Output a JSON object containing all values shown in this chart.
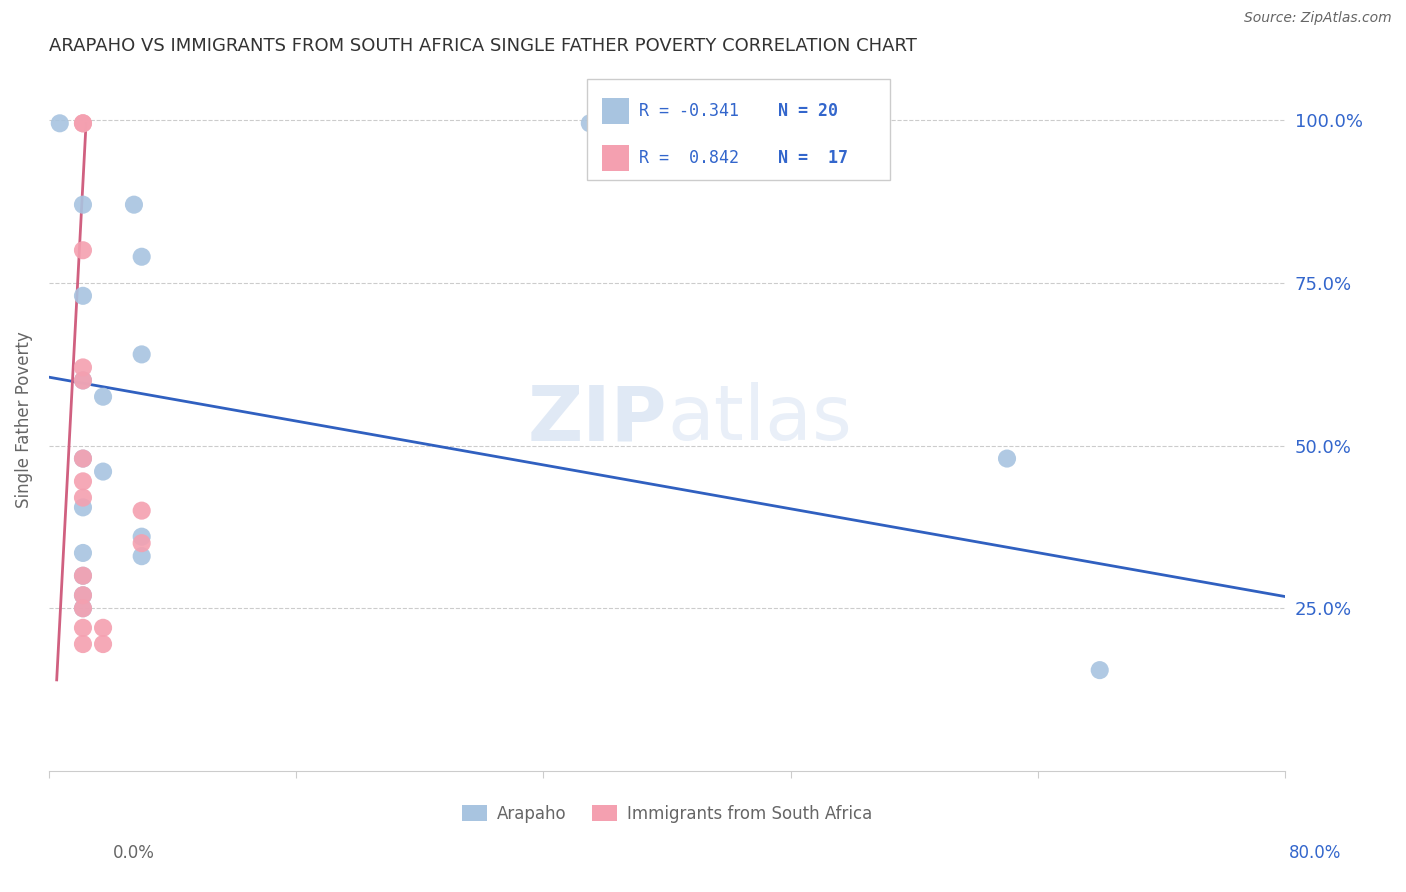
{
  "title": "ARAPAHO VS IMMIGRANTS FROM SOUTH AFRICA SINGLE FATHER POVERTY CORRELATION CHART",
  "source": "Source: ZipAtlas.com",
  "ylabel": "Single Father Poverty",
  "ytick_labels": [
    "100.0%",
    "75.0%",
    "50.0%",
    "25.0%"
  ],
  "ytick_positions": [
    1.0,
    0.75,
    0.5,
    0.25
  ],
  "xlim": [
    0.0,
    0.8
  ],
  "ylim": [
    0.0,
    1.08
  ],
  "legend_r1": "R = -0.341",
  "legend_n1": "N = 20",
  "legend_r2": "R =  0.842",
  "legend_n2": "N =  17",
  "arapaho_color": "#a8c4e0",
  "south_africa_color": "#f4a0b0",
  "line_blue": "#3060c0",
  "line_pink": "#d06080",
  "watermark_zip": "ZIP",
  "watermark_atlas": "atlas",
  "arapaho_x": [
    0.007,
    0.022,
    0.055,
    0.06,
    0.022,
    0.06,
    0.022,
    0.035,
    0.022,
    0.035,
    0.022,
    0.022,
    0.022,
    0.022,
    0.022,
    0.06,
    0.06,
    0.35,
    0.62,
    0.68
  ],
  "arapaho_y": [
    0.995,
    0.87,
    0.87,
    0.79,
    0.73,
    0.64,
    0.6,
    0.575,
    0.48,
    0.46,
    0.405,
    0.335,
    0.3,
    0.27,
    0.25,
    0.36,
    0.33,
    0.995,
    0.48,
    0.155
  ],
  "south_africa_x": [
    0.022,
    0.022,
    0.022,
    0.022,
    0.022,
    0.022,
    0.022,
    0.022,
    0.022,
    0.022,
    0.022,
    0.022,
    0.022,
    0.035,
    0.035,
    0.06,
    0.06
  ],
  "south_africa_y": [
    0.995,
    0.995,
    0.8,
    0.62,
    0.6,
    0.48,
    0.445,
    0.42,
    0.3,
    0.27,
    0.25,
    0.22,
    0.195,
    0.22,
    0.195,
    0.4,
    0.35
  ],
  "blue_line_x": [
    0.0,
    0.8
  ],
  "blue_line_y": [
    0.605,
    0.268
  ],
  "pink_line_x": [
    0.005,
    0.024
  ],
  "pink_line_y": [
    0.14,
    0.995
  ],
  "text_color_blue": "#3366cc",
  "text_color_dark": "#333333",
  "text_color_gray": "#666666",
  "grid_color": "#cccccc"
}
